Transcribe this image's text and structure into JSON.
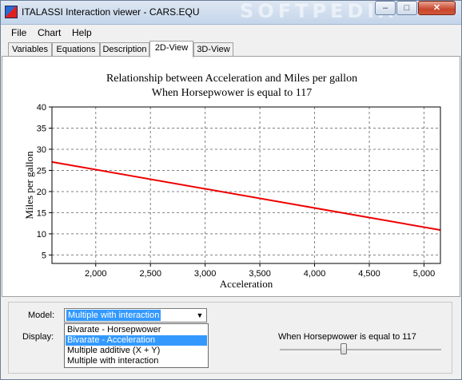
{
  "window": {
    "title": "ITALASSI Interaction viewer - CARS.EQU",
    "watermark": "SOFTPEDIA",
    "minimize_glyph": "–",
    "maximize_glyph": "□",
    "close_glyph": "✕"
  },
  "menu": {
    "items": [
      "File",
      "Chart",
      "Help"
    ]
  },
  "tabs": {
    "items": [
      "Variables",
      "Equations",
      "Description",
      "2D-View",
      "3D-View"
    ],
    "active": "2D-View"
  },
  "chart_data": {
    "type": "line",
    "title": "Relationship between Acceleration and Miles per gallon",
    "subtitle": "When Horsepwower is equal to 117",
    "xlabel": "Acceleration",
    "ylabel": "Miles per gallon",
    "xlim": [
      1600,
      5150
    ],
    "ylim": [
      3,
      40
    ],
    "xticks": [
      2000,
      2500,
      3000,
      3500,
      4000,
      4500,
      5000
    ],
    "xtick_labels": [
      "2,000",
      "2,500",
      "3,000",
      "3,500",
      "4,000",
      "4,500",
      "5,000"
    ],
    "yticks": [
      5,
      10,
      15,
      20,
      25,
      30,
      35,
      40
    ],
    "ytick_labels": [
      "5",
      "10",
      "15",
      "20",
      "25",
      "30",
      "35",
      "40"
    ],
    "grid": true,
    "series": [
      {
        "x": [
          1600,
          5150
        ],
        "y": [
          27,
          10.9
        ],
        "color": "#ee0000"
      }
    ]
  },
  "controls": {
    "model_label": "Model:",
    "model_value": "Multiple with interaction",
    "display_label": "Display:",
    "dropdown_options": [
      "Bivarate - Horsepwower",
      "Bivarate - Acceleration",
      "Multiple additive (X + Y)",
      "Multiple with interaction"
    ],
    "dropdown_selected_index": 1,
    "slider_label": "When Horsepwower is equal to 117",
    "slider_level": 0.39
  }
}
